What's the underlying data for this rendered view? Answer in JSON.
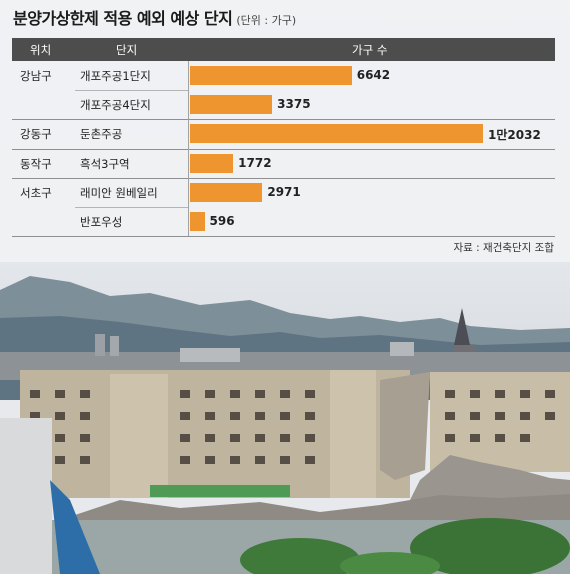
{
  "header": {
    "title": "분양가상한제 적용 예외 예상 단지",
    "unit": "(단위 : 가구)"
  },
  "table_header": {
    "col_location": "위치",
    "col_complex": "단지",
    "col_households": "가구 수"
  },
  "chart_data": {
    "type": "bar",
    "orientation": "horizontal",
    "title": "분양가상한제 적용 예외 예상 단지",
    "unit": "가구",
    "xlim": [
      0,
      12032
    ],
    "rows": [
      {
        "location": "강남구",
        "complex": "개포주공1단지",
        "households": 6642,
        "label": "6642"
      },
      {
        "location": "",
        "complex": "개포주공4단지",
        "households": 3375,
        "label": "3375"
      },
      {
        "location": "강동구",
        "complex": "둔촌주공",
        "households": 12032,
        "label": "1만2032"
      },
      {
        "location": "동작구",
        "complex": "흑석3구역",
        "households": 1772,
        "label": "1772"
      },
      {
        "location": "서초구",
        "complex": "래미안 원베일리",
        "households": 2971,
        "label": "2971"
      },
      {
        "location": "",
        "complex": "반포우성",
        "households": 596,
        "label": "596"
      }
    ],
    "bar_color": "#ee952f"
  },
  "source": "자료 : 재건축단지 조합"
}
